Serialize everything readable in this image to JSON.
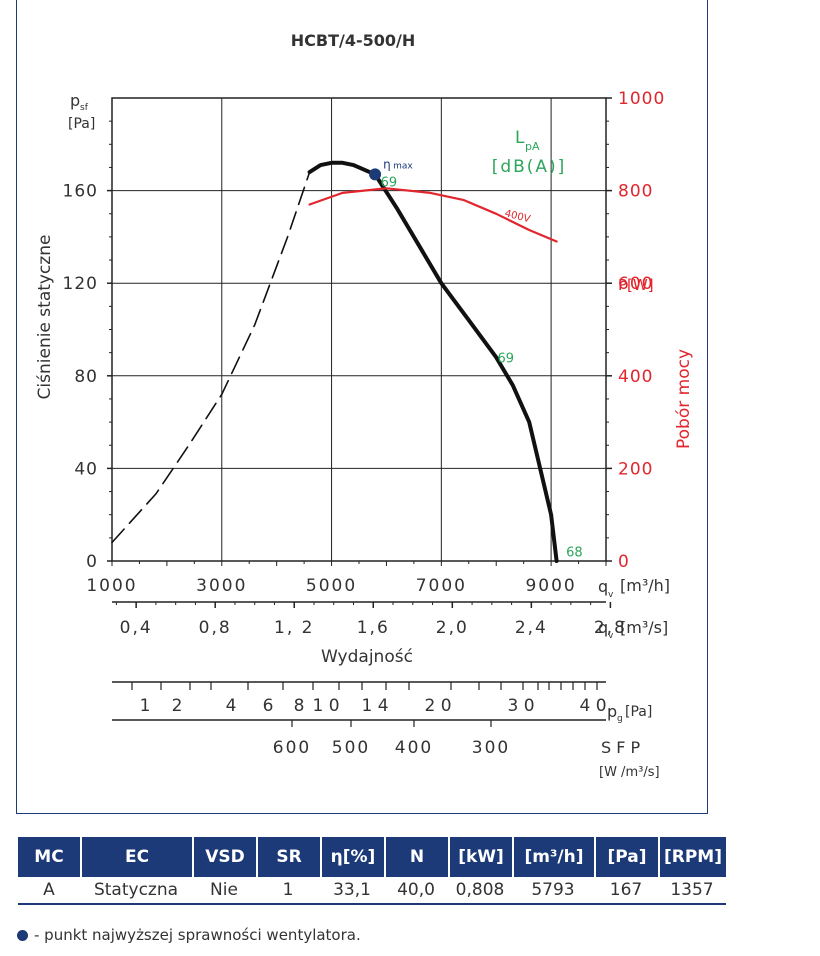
{
  "chart_data": {
    "type": "line",
    "title": "HCBT/4-500/H",
    "y_axis": {
      "label": "Ciśnienie statyczne",
      "unit_symbol": "p",
      "unit_sub": "sf",
      "unit": "[Pa]",
      "range": [
        0,
        200
      ],
      "ticks": [
        0,
        40,
        80,
        120,
        160
      ]
    },
    "y2_axis": {
      "label": "Pobór mocy",
      "unit": "P[W]",
      "range": [
        0,
        1000
      ],
      "ticks": [
        0,
        200,
        400,
        600,
        800,
        1000
      ]
    },
    "x_axis": {
      "label": "Wydajność",
      "unit": "q",
      "unit_sub": "v",
      "unit_flow_h": "[m³/h]",
      "unit_flow_s": "[m³/s]",
      "range": [
        1000,
        10000
      ],
      "ticks_m3h": [
        "1000",
        "3000",
        "5000",
        "7000",
        "9000"
      ],
      "ticks_m3s": [
        "0,4",
        "0,8",
        "1, 2",
        "1,6",
        "2,0",
        "2,4",
        "2,8"
      ]
    },
    "series": [
      {
        "name": "pressure-unstable",
        "style": "dashed",
        "color": "#111111",
        "x": [
          1000,
          1800,
          2400,
          3000,
          3600,
          4200,
          4600
        ],
        "y": [
          8,
          29,
          50,
          72,
          102,
          140,
          168
        ]
      },
      {
        "name": "pressure",
        "style": "solid",
        "color": "#111111",
        "x": [
          4600,
          4800,
          5000,
          5200,
          5400,
          5793,
          6200,
          6600,
          7000,
          7500,
          8000,
          8300,
          8600,
          9000,
          9100
        ],
        "y": [
          168,
          171,
          172,
          172,
          171,
          167,
          152,
          136,
          120,
          104,
          88,
          76,
          60,
          20,
          0
        ]
      },
      {
        "name": "power",
        "style": "solid",
        "color": "#e1262d",
        "axis": "y2",
        "x": [
          4600,
          5200,
          6000,
          6800,
          7400,
          8000,
          8600,
          9100
        ],
        "y": [
          770,
          795,
          805,
          795,
          780,
          750,
          715,
          690
        ]
      }
    ],
    "annotations": {
      "lpa_header_line1": "L",
      "lpa_header_sub": "pA",
      "lpa_header_line2": "[dB(A)]",
      "eta_symbol": "η",
      "eta_sub": "max",
      "eta_point": [
        5793,
        167
      ],
      "noise_labels": [
        {
          "text": "69",
          "x": 5820,
          "y": 164
        },
        {
          "text": "69",
          "x": 7950,
          "y": 88
        },
        {
          "text": "68",
          "x": 9200,
          "y": 4
        }
      ],
      "voltage_label": "400V",
      "voltage_at": [
        8000,
        745
      ]
    },
    "pressure_scale": {
      "ticks": [
        1,
        2,
        4,
        6,
        8,
        10,
        14,
        20,
        30,
        40
      ],
      "labels": [
        "1",
        "2",
        "4",
        "6",
        "8",
        "1 0",
        "1 4",
        "2 0",
        "3 0",
        "4 0"
      ],
      "unit": "p",
      "unit_sub": "g",
      "unit_tail": "[Pa]"
    },
    "sfp_scale": {
      "ticks": [
        600,
        500,
        400,
        300
      ],
      "unit_line1": "S F P",
      "unit_line2": "[W /m³/s]"
    },
    "colors": {
      "frame": "#1c3a78",
      "green": "#2aa55a",
      "red": "#e1262d",
      "eta_dot": "#1c3a78"
    }
  },
  "table": {
    "headers": [
      "MC",
      "EC",
      "VSD",
      "SR",
      "η[%]",
      "N",
      "[kW]",
      "[m³/h]",
      "[Pa]",
      "[RPM]"
    ],
    "row": [
      "A",
      "Statyczna",
      "Nie",
      "1",
      "33,1",
      "40,0",
      "0,808",
      "5793",
      "167",
      "1357"
    ]
  },
  "footnote": "- punkt najwyższej sprawności wentylatora."
}
